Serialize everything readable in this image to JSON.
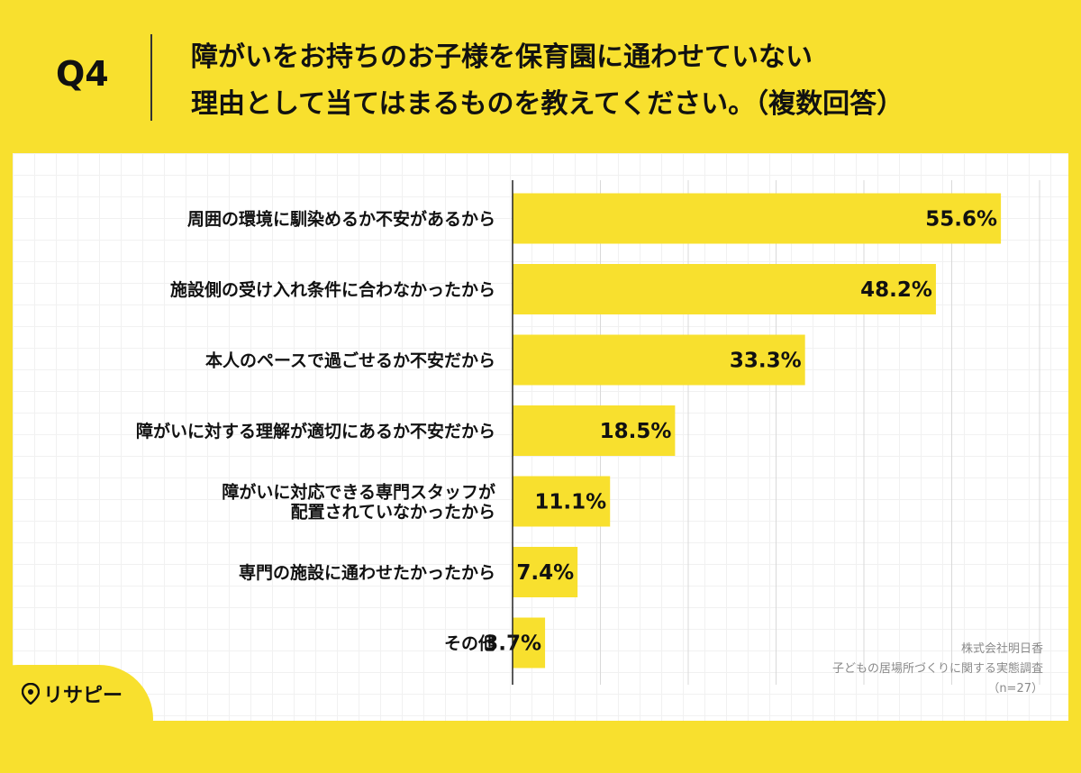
{
  "header": {
    "question_number": "Q4",
    "title_line1": "障がいをお持ちのお子様を保育園に通わせていない",
    "title_line2": "理由として当てはまるものを教えてください。（複数回答）"
  },
  "source": {
    "company": "株式会社明日香",
    "survey": "子どもの居場所づくりに関する実態調査",
    "sample": "（n=27）"
  },
  "logo": {
    "text": "リサピー",
    "icon": "location-pin-icon"
  },
  "colors": {
    "background": "#F8E02E",
    "bar": "#F8E02E",
    "grid": "#D9D9D9",
    "axis": "#222222"
  },
  "chart_data": {
    "type": "bar",
    "orientation": "horizontal",
    "categories": [
      [
        "周囲の環境に馴染めるか不安があるから"
      ],
      [
        "施設側の受け入れ条件に合わなかったから"
      ],
      [
        "本人のペースで過ごせるか不安だから"
      ],
      [
        "障がいに対する理解が適切にあるか不安だから"
      ],
      [
        "障がいに対応できる専門スタッフが",
        "配置されていなかったから"
      ],
      [
        "専門の施設に通わせたかったから"
      ],
      [
        "その他"
      ]
    ],
    "values": [
      55.6,
      48.2,
      33.3,
      18.5,
      11.1,
      7.4,
      3.7
    ],
    "value_labels": [
      "55.6%",
      "48.2%",
      "33.3%",
      "18.5%",
      "11.1%",
      "7.4%",
      "3.7%"
    ],
    "xlim": [
      0,
      60
    ],
    "grid": true,
    "legend": "none"
  }
}
